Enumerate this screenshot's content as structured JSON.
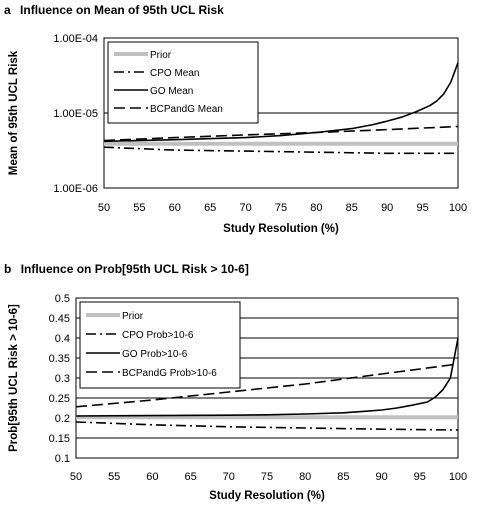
{
  "chart_data": [
    {
      "type": "line",
      "panel_letter": "a",
      "title": "Influence on Mean of 95th UCL Risk",
      "xlabel": "Study Resolution (%)",
      "ylabel": "Mean of 95th UCL Risk",
      "xlim": [
        50,
        100
      ],
      "x_ticks": [
        "50",
        "55",
        "60",
        "65",
        "70",
        "75",
        "80",
        "85",
        "90",
        "95",
        "100"
      ],
      "y_scale": "log",
      "ylim": [
        1e-06,
        0.0001
      ],
      "y_ticks": [
        {
          "value": 0.0001,
          "label": "1.00E-04"
        },
        {
          "value": 1e-05,
          "label": "1.00E-05"
        },
        {
          "value": 1e-06,
          "label": "1.00E-06"
        }
      ],
      "grid": "horizontal",
      "legend": "top-left",
      "series": [
        {
          "name": "Prior",
          "color": "#c0c0c0",
          "style": "solid-thick",
          "x": [
            50,
            100
          ],
          "y": [
            3.9e-06,
            3.9e-06
          ]
        },
        {
          "name": "CPO Mean",
          "color": "#000000",
          "style": "dash-dot",
          "x": [
            50,
            60,
            70,
            80,
            90,
            100
          ],
          "y": [
            3.5e-06,
            3.2e-06,
            3.1e-06,
            3e-06,
            2.9e-06,
            2.9e-06
          ]
        },
        {
          "name": "GO Mean",
          "color": "#000000",
          "style": "solid",
          "x": [
            50,
            60,
            70,
            75,
            80,
            85,
            88,
            90,
            92,
            94,
            96,
            97,
            98,
            99,
            100
          ],
          "y": [
            4.2e-06,
            4.4e-06,
            4.7e-06,
            5e-06,
            5.5e-06,
            6.2e-06,
            7e-06,
            7.8e-06,
            8.8e-06,
            1.03e-05,
            1.25e-05,
            1.45e-05,
            1.8e-05,
            2.6e-05,
            4.7e-05
          ]
        },
        {
          "name": "BCPandG Mean",
          "color": "#000000",
          "style": "long-dash",
          "x": [
            50,
            60,
            70,
            80,
            90,
            100
          ],
          "y": [
            4.3e-06,
            4.7e-06,
            5.1e-06,
            5.5e-06,
            6e-06,
            6.6e-06
          ]
        }
      ]
    },
    {
      "type": "line",
      "panel_letter": "b",
      "title": "Influence on Prob[95th UCL Risk > 10-6]",
      "xlabel": "Study Resolution (%)",
      "ylabel": "Prob[95th UCL Risk > 10-6]",
      "xlim": [
        50,
        100
      ],
      "x_ticks": [
        "50",
        "55",
        "60",
        "65",
        "70",
        "75",
        "80",
        "85",
        "90",
        "95",
        "100"
      ],
      "y_scale": "linear",
      "ylim": [
        0.1,
        0.5
      ],
      "y_ticks": [
        {
          "value": 0.5,
          "label": "0.5"
        },
        {
          "value": 0.45,
          "label": "0.45"
        },
        {
          "value": 0.4,
          "label": "0.4"
        },
        {
          "value": 0.35,
          "label": "0.35"
        },
        {
          "value": 0.3,
          "label": "0.3"
        },
        {
          "value": 0.25,
          "label": "0.25"
        },
        {
          "value": 0.2,
          "label": "0.2"
        },
        {
          "value": 0.15,
          "label": "0.15"
        },
        {
          "value": 0.1,
          "label": "0.1"
        }
      ],
      "grid": "horizontal",
      "legend": "top-left",
      "series": [
        {
          "name": "Prior",
          "color": "#c0c0c0",
          "style": "solid-thick",
          "x": [
            50,
            100
          ],
          "y": [
            0.202,
            0.202
          ]
        },
        {
          "name": "CPO Prob>10-6",
          "color": "#000000",
          "style": "dash-dot",
          "x": [
            50,
            60,
            70,
            80,
            90,
            100
          ],
          "y": [
            0.19,
            0.183,
            0.178,
            0.175,
            0.172,
            0.17
          ]
        },
        {
          "name": "GO Prob>10-6",
          "color": "#000000",
          "style": "solid",
          "x": [
            50,
            60,
            70,
            75,
            80,
            85,
            88,
            90,
            92,
            94,
            96,
            97,
            98,
            99,
            100
          ],
          "y": [
            0.205,
            0.206,
            0.207,
            0.208,
            0.21,
            0.213,
            0.217,
            0.22,
            0.225,
            0.232,
            0.24,
            0.252,
            0.27,
            0.3,
            0.4
          ]
        },
        {
          "name": "BCPandG Prob>10-6",
          "color": "#000000",
          "style": "long-dash",
          "x": [
            50,
            60,
            70,
            80,
            90,
            100
          ],
          "y": [
            0.228,
            0.245,
            0.265,
            0.285,
            0.31,
            0.335
          ]
        }
      ]
    }
  ]
}
